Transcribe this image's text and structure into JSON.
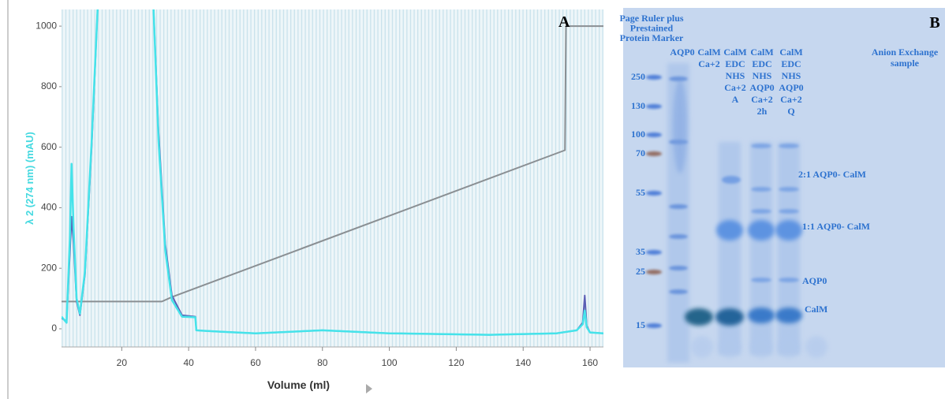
{
  "chart_data": {
    "type": "line",
    "panel_label": "A",
    "xlabel": "Volume (ml)",
    "ylabel": "λ 2 (274 nm) (mAU)",
    "xlim": [
      2,
      164
    ],
    "ylim": [
      -60,
      1055
    ],
    "xticks": [
      20,
      40,
      60,
      80,
      100,
      120,
      140,
      160
    ],
    "yticks": [
      0,
      200,
      400,
      600,
      800,
      1000
    ],
    "grid": false,
    "series": [
      {
        "color": "#8a8f93",
        "width": 2,
        "x": [
          2,
          32,
          35,
          152.5,
          152.8,
          164
        ],
        "values": [
          90,
          90,
          105,
          590,
          1000,
          1000
        ]
      },
      {
        "color": "#5b5fb5",
        "width": 2,
        "x": [
          2,
          3.5,
          4.5,
          5,
          5.6,
          6.5,
          7.5,
          9,
          11,
          12.8,
          29.5,
          31,
          33,
          35,
          38,
          42,
          42.3,
          50,
          60,
          80,
          100,
          130,
          150,
          156,
          157.8,
          158.4,
          159,
          160,
          164
        ],
        "values": [
          35,
          25,
          250,
          370,
          280,
          90,
          45,
          180,
          600,
          1060,
          1060,
          650,
          280,
          110,
          45,
          40,
          -5,
          -10,
          -15,
          -5,
          -15,
          -20,
          -15,
          -5,
          20,
          110,
          10,
          -12,
          -15
        ]
      },
      {
        "color": "#45e3ea",
        "width": 2.5,
        "x": [
          2,
          3.5,
          4.5,
          5,
          5.6,
          6.5,
          7.5,
          9,
          11,
          12.8,
          29.5,
          31,
          33,
          35,
          38,
          42,
          42.3,
          50,
          60,
          80,
          100,
          130,
          150,
          156,
          157.8,
          158.4,
          159,
          160,
          164
        ],
        "values": [
          40,
          20,
          300,
          545,
          330,
          100,
          50,
          190,
          620,
          1060,
          1060,
          620,
          260,
          95,
          40,
          38,
          -5,
          -10,
          -15,
          -5,
          -15,
          -20,
          -15,
          -5,
          15,
          60,
          5,
          -12,
          -15
        ]
      }
    ]
  },
  "gel": {
    "panel_label": "B",
    "marker_title": [
      "Page Ruler plus",
      "Prestained",
      "Protein Marker"
    ],
    "marker_sizes": [
      250,
      130,
      100,
      70,
      55,
      35,
      25,
      15
    ],
    "lanes": [
      [
        "AQP0"
      ],
      [
        "CalM",
        "Ca+2"
      ],
      [
        "CalM",
        "EDC",
        "NHS",
        "Ca+2",
        "A"
      ],
      [
        "CalM",
        "EDC",
        "NHS",
        "AQP0",
        "Ca+2",
        "2h"
      ],
      [
        "CalM",
        "EDC",
        "NHS",
        "AQP0",
        "Ca+2",
        "Q"
      ]
    ],
    "sample_label": [
      "Anion Exchange",
      "sample"
    ],
    "band_labels": [
      "2:1 AQP0- CalM",
      "1:1 AQP0- CalM",
      "AQP0",
      "CalM"
    ]
  }
}
